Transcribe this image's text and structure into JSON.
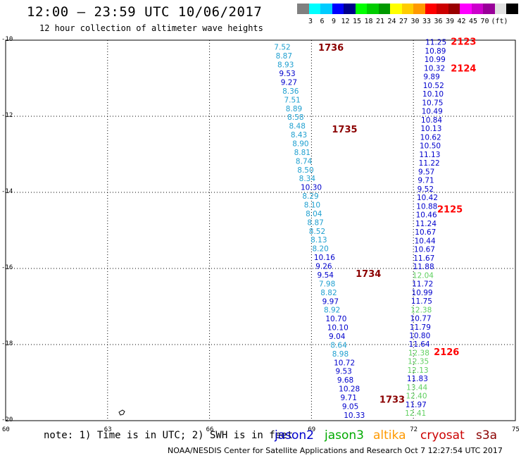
{
  "header": {
    "title": "12:00 – 23:59 UTC 10/06/2017",
    "subtitle": "12 hour collection of altimeter wave heights"
  },
  "legend": {
    "colors": [
      "#808080",
      "#00ffff",
      "#00ccff",
      "#0000ff",
      "#00008b",
      "#00ff00",
      "#00cc00",
      "#009900",
      "#ffff00",
      "#ffcc00",
      "#ff9900",
      "#ff0000",
      "#cc0000",
      "#990000",
      "#ff00ff",
      "#cc00cc",
      "#990099",
      "#e0e0e0",
      "#000000"
    ],
    "labels": [
      "3",
      "6",
      "9",
      "12",
      "15",
      "18",
      "21",
      "24",
      "27",
      "30",
      "33",
      "36",
      "39",
      "42",
      "45",
      "70",
      "(ft)"
    ]
  },
  "map": {
    "lon_range": [
      60,
      75
    ],
    "lat_range": [
      -20,
      -10
    ],
    "x_ticks": [
      "60",
      "63",
      "66",
      "69",
      "72",
      "75"
    ],
    "y_ticks": [
      "-10",
      "-12",
      "-14",
      "-16",
      "-18",
      "-20"
    ],
    "track_west": [
      {
        "v": "7.52",
        "c": "#20a0d0"
      },
      {
        "v": "8.87",
        "c": "#20a0d0"
      },
      {
        "v": "8.93",
        "c": "#20a0d0"
      },
      {
        "v": "9.53",
        "c": "#0000cc"
      },
      {
        "v": "9.27",
        "c": "#0000cc"
      },
      {
        "v": "8.36",
        "c": "#20a0d0"
      },
      {
        "v": "7.51",
        "c": "#20a0d0"
      },
      {
        "v": "8.89",
        "c": "#20a0d0"
      },
      {
        "v": "8.58",
        "c": "#20a0d0"
      },
      {
        "v": "8.48",
        "c": "#20a0d0"
      },
      {
        "v": "8.43",
        "c": "#20a0d0"
      },
      {
        "v": "8.90",
        "c": "#20a0d0"
      },
      {
        "v": "8.81",
        "c": "#20a0d0"
      },
      {
        "v": "8.74",
        "c": "#20a0d0"
      },
      {
        "v": "8.50",
        "c": "#20a0d0"
      },
      {
        "v": "8.34",
        "c": "#20a0d0"
      },
      {
        "v": "10.30",
        "c": "#0000cc"
      },
      {
        "v": "8.29",
        "c": "#20a0d0"
      },
      {
        "v": "8.10",
        "c": "#20a0d0"
      },
      {
        "v": "8.04",
        "c": "#20a0d0"
      },
      {
        "v": "8.87",
        "c": "#20a0d0"
      },
      {
        "v": "8.52",
        "c": "#20a0d0"
      },
      {
        "v": "8.13",
        "c": "#20a0d0"
      },
      {
        "v": "8.20",
        "c": "#20a0d0"
      },
      {
        "v": "10.16",
        "c": "#0000cc"
      },
      {
        "v": "9.26",
        "c": "#0000cc"
      },
      {
        "v": "9.54",
        "c": "#0000cc"
      },
      {
        "v": "7.98",
        "c": "#20a0d0"
      },
      {
        "v": "8.82",
        "c": "#20a0d0"
      },
      {
        "v": "9.97",
        "c": "#0000cc"
      },
      {
        "v": "8.92",
        "c": "#20a0d0"
      },
      {
        "v": "10.70",
        "c": "#0000cc"
      },
      {
        "v": "10.10",
        "c": "#0000cc"
      },
      {
        "v": "9.04",
        "c": "#0000cc"
      },
      {
        "v": "8.64",
        "c": "#20a0d0"
      },
      {
        "v": "8.98",
        "c": "#20a0d0"
      },
      {
        "v": "10.72",
        "c": "#0000cc"
      },
      {
        "v": "9.53",
        "c": "#0000cc"
      },
      {
        "v": "9.68",
        "c": "#0000cc"
      },
      {
        "v": "10.28",
        "c": "#0000cc"
      },
      {
        "v": "9.71",
        "c": "#0000cc"
      },
      {
        "v": "9.05",
        "c": "#0000cc"
      },
      {
        "v": "10.33",
        "c": "#0000cc"
      }
    ],
    "track_east": [
      {
        "v": "11.25",
        "c": "#0000cc"
      },
      {
        "v": "10.89",
        "c": "#0000cc"
      },
      {
        "v": "10.99",
        "c": "#0000cc"
      },
      {
        "v": "10.32",
        "c": "#0000cc"
      },
      {
        "v": "9.89",
        "c": "#0000cc"
      },
      {
        "v": "10.52",
        "c": "#0000cc"
      },
      {
        "v": "10.10",
        "c": "#0000cc"
      },
      {
        "v": "10.75",
        "c": "#0000cc"
      },
      {
        "v": "10.49",
        "c": "#0000cc"
      },
      {
        "v": "10.84",
        "c": "#0000cc"
      },
      {
        "v": "10.13",
        "c": "#0000cc"
      },
      {
        "v": "10.62",
        "c": "#0000cc"
      },
      {
        "v": "10.50",
        "c": "#0000cc"
      },
      {
        "v": "11.13",
        "c": "#0000cc"
      },
      {
        "v": "11.22",
        "c": "#0000cc"
      },
      {
        "v": "9.57",
        "c": "#0000cc"
      },
      {
        "v": "9.71",
        "c": "#0000cc"
      },
      {
        "v": "9.52",
        "c": "#0000cc"
      },
      {
        "v": "10.42",
        "c": "#0000cc"
      },
      {
        "v": "10.88",
        "c": "#0000cc"
      },
      {
        "v": "10.46",
        "c": "#0000cc"
      },
      {
        "v": "11.24",
        "c": "#0000cc"
      },
      {
        "v": "10.67",
        "c": "#0000cc"
      },
      {
        "v": "10.44",
        "c": "#0000cc"
      },
      {
        "v": "10.67",
        "c": "#0000cc"
      },
      {
        "v": "11.67",
        "c": "#0000cc"
      },
      {
        "v": "11.88",
        "c": "#0000cc"
      },
      {
        "v": "12.04",
        "c": "#60d060"
      },
      {
        "v": "11.72",
        "c": "#0000cc"
      },
      {
        "v": "10.99",
        "c": "#0000cc"
      },
      {
        "v": "11.75",
        "c": "#0000cc"
      },
      {
        "v": "12.38",
        "c": "#60d060"
      },
      {
        "v": "10.77",
        "c": "#0000cc"
      },
      {
        "v": "11.79",
        "c": "#0000cc"
      },
      {
        "v": "10.80",
        "c": "#0000cc"
      },
      {
        "v": "11.64",
        "c": "#0000cc"
      },
      {
        "v": "12.38",
        "c": "#60d060"
      },
      {
        "v": "12.35",
        "c": "#60d060"
      },
      {
        "v": "12.13",
        "c": "#60d060"
      },
      {
        "v": "11.83",
        "c": "#0000cc"
      },
      {
        "v": "13.44",
        "c": "#60d060"
      },
      {
        "v": "12.40",
        "c": "#60d060"
      },
      {
        "v": "11.97",
        "c": "#0000cc"
      },
      {
        "v": "12.41",
        "c": "#60d060"
      }
    ],
    "time_labels": [
      {
        "t": "1736",
        "c": "#8b0000",
        "lon": 69.2,
        "lat": -10.2
      },
      {
        "t": "1735",
        "c": "#8b0000",
        "lon": 69.6,
        "lat": -12.35
      },
      {
        "t": "1734",
        "c": "#8b0000",
        "lon": 70.3,
        "lat": -16.15
      },
      {
        "t": "1733",
        "c": "#8b0000",
        "lon": 71.0,
        "lat": -19.45
      },
      {
        "t": "2123",
        "c": "#ff0000",
        "lon": 73.1,
        "lat": -10.05
      },
      {
        "t": "2124",
        "c": "#ff0000",
        "lon": 73.1,
        "lat": -10.75
      },
      {
        "t": "2125",
        "c": "#ff0000",
        "lon": 72.7,
        "lat": -14.45
      },
      {
        "t": "2126",
        "c": "#ff0000",
        "lon": 72.6,
        "lat": -18.2
      }
    ]
  },
  "footer": {
    "note": "note: 1) Time is in UTC; 2) SWH is in feet",
    "sat_jason2": "jason2",
    "sat_jason3": "jason3",
    "sat_altika": "altika",
    "sat_cryosat": "cryosat",
    "sat_s3a": "s3a",
    "color_jason2": "#0000cc",
    "color_jason3": "#00aa00",
    "color_altika": "#ff9900",
    "color_cryosat": "#cc0000",
    "color_s3a": "#8b0000",
    "credit": "NOAA/NESDIS Center for Satellite Applications and Research   Oct  7 12:27:54 UTC 2017"
  }
}
